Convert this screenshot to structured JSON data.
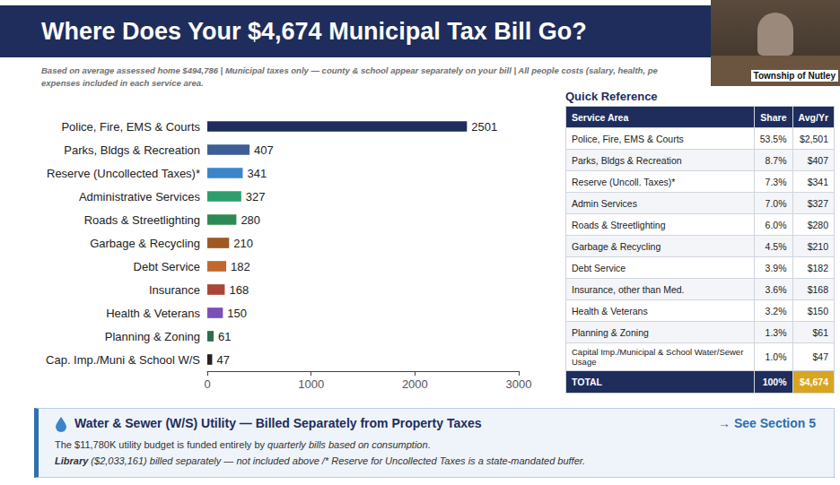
{
  "header": {
    "title": "Where Does Your $4,674 Municipal Tax Bill Go?",
    "subtitle": [
      "Based on average assessed home $494,786  |  Municipal taxes only — county & school appear separately on your bill  |  All people costs (salary, health, pe",
      "expenses included in each service area."
    ]
  },
  "inset": {
    "label": "Township of Nutley"
  },
  "chart_data": {
    "type": "bar",
    "orientation": "horizontal",
    "categories": [
      "Police, Fire, EMS & Courts",
      "Parks, Bldgs & Recreation",
      "Reserve (Uncollected Taxes)*",
      "Administrative Services",
      "Roads & Streetlighting",
      "Garbage & Recycling",
      "Debt Service",
      "Insurance",
      "Health & Veterans",
      "Planning & Zoning",
      "Cap. Imp./Muni & School W/S"
    ],
    "values": [
      2501,
      407,
      341,
      327,
      280,
      210,
      182,
      168,
      150,
      61,
      47
    ],
    "colors": [
      "#1f2d5c",
      "#3d5f95",
      "#3a86c8",
      "#2f9e6e",
      "#2e8a55",
      "#9c5a26",
      "#c0692e",
      "#a8473a",
      "#7a4fb8",
      "#2f6b4f",
      "#222222"
    ],
    "xlim": [
      0,
      3000
    ],
    "xticks": [
      0,
      1000,
      2000,
      3000
    ],
    "grid": false,
    "data_labels": true
  },
  "table": {
    "title": "Quick Reference",
    "columns": [
      "Service Area",
      "Share",
      "Avg/Yr"
    ],
    "rows": [
      [
        "Police, Fire, EMS & Courts",
        "53.5%",
        "$2,501"
      ],
      [
        "Parks, Bldgs & Recreation",
        "8.7%",
        "$407"
      ],
      [
        "Reserve (Uncoll. Taxes)*",
        "7.3%",
        "$341"
      ],
      [
        "Admin Services",
        "7.0%",
        "$327"
      ],
      [
        "Roads & Streetlighting",
        "6.0%",
        "$280"
      ],
      [
        "Garbage & Recycling",
        "4.5%",
        "$210"
      ],
      [
        "Debt Service",
        "3.9%",
        "$182"
      ],
      [
        "Insurance, other than Med.",
        "3.6%",
        "$168"
      ],
      [
        "Health & Veterans",
        "3.2%",
        "$150"
      ],
      [
        "Planning & Zoning",
        "1.3%",
        "$61"
      ],
      [
        "Capital Imp./Municipal & School Water/Sewer Usage",
        "1.0%",
        "$47"
      ]
    ],
    "total": [
      "TOTAL",
      "100%",
      "$4,674"
    ]
  },
  "footer": {
    "heading": "Water & Sewer (W/S) Utility — Billed Separately from Property Taxes",
    "link": "→ See Section 5",
    "line1": [
      "The $11,780K utility budget is funded entirely by ",
      "quarterly bills based on consumption",
      "."
    ],
    "line2": [
      "Library",
      " ($2,033,161) billed separately — not included above /* Reserve for Uncollected Taxes is a state-mandated buffer."
    ]
  }
}
